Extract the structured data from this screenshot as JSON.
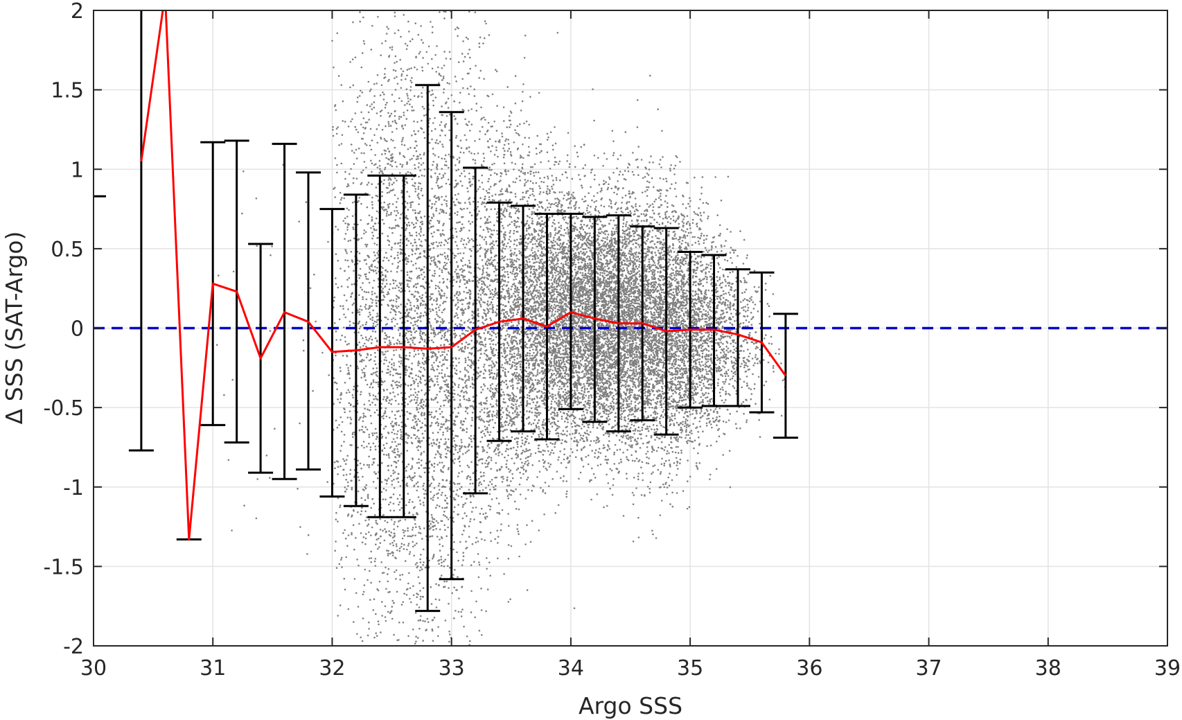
{
  "chart_data": {
    "type": "scatter",
    "title": "",
    "xlabel": "Argo SSS",
    "ylabel": "Δ SSS (SAT-Argo)",
    "xlim": [
      30,
      39
    ],
    "ylim": [
      -2,
      2
    ],
    "xticks": [
      "30",
      "31",
      "32",
      "33",
      "34",
      "35",
      "36",
      "37",
      "38",
      "39"
    ],
    "yticks": [
      "-2",
      "-1.5",
      "-1",
      "-0.5",
      "0",
      "0.5",
      "1",
      "1.5",
      "2"
    ],
    "grid": true,
    "legend": "none",
    "colors": {
      "scatter": "#808080",
      "mean_line": "#ff0000",
      "zero_line": "#0000cc",
      "error_bars": "#000000",
      "grid": "#e3e3e3",
      "axes": "#262626"
    },
    "zero_reference_line": {
      "y": 0,
      "style": "dashed"
    },
    "bins": {
      "x": [
        30.0,
        30.4,
        30.6,
        30.8,
        31.0,
        31.2,
        31.4,
        31.6,
        31.8,
        32.0,
        32.2,
        32.4,
        32.6,
        32.8,
        33.0,
        33.2,
        33.4,
        33.6,
        33.8,
        34.0,
        34.2,
        34.4,
        34.6,
        34.8,
        35.0,
        35.2,
        35.4,
        35.6,
        35.8
      ],
      "mean": [
        null,
        1.05,
        2.1,
        -1.33,
        0.28,
        0.23,
        -0.19,
        0.1,
        0.04,
        -0.15,
        -0.14,
        -0.12,
        -0.12,
        -0.13,
        -0.12,
        -0.01,
        0.04,
        0.06,
        0.01,
        0.1,
        0.06,
        0.03,
        0.03,
        -0.02,
        -0.01,
        -0.01,
        -0.04,
        -0.09,
        -0.3
      ],
      "upper": [
        0.83,
        3.0,
        null,
        null,
        1.17,
        1.18,
        0.53,
        1.16,
        0.98,
        0.75,
        0.84,
        0.96,
        0.96,
        1.53,
        1.36,
        1.01,
        0.79,
        0.77,
        0.72,
        0.72,
        0.7,
        0.71,
        0.64,
        0.63,
        0.48,
        0.46,
        0.37,
        0.35,
        0.09
      ],
      "lower": [
        null,
        -0.77,
        null,
        -1.33,
        -0.61,
        -0.72,
        -0.91,
        -0.95,
        -0.89,
        -1.06,
        -1.12,
        -1.19,
        -1.19,
        -1.78,
        -1.58,
        -1.04,
        -0.71,
        -0.65,
        -0.7,
        -0.51,
        -0.59,
        -0.65,
        -0.58,
        -0.67,
        -0.5,
        -0.49,
        -0.49,
        -0.53,
        -0.69
      ]
    },
    "scatter_density": {
      "description_units": "points per 0.1 SSS column",
      "x_centers": [
        31.1,
        31.3,
        31.5,
        31.7,
        31.9,
        32.05,
        32.15,
        32.25,
        32.35,
        32.45,
        32.55,
        32.65,
        32.75,
        32.85,
        32.95,
        33.05,
        33.15,
        33.25,
        33.35,
        33.45,
        33.55,
        33.65,
        33.75,
        33.85,
        33.95,
        34.05,
        34.15,
        34.25,
        34.35,
        34.45,
        34.55,
        34.65,
        34.75,
        34.85,
        34.95,
        35.05,
        35.15,
        35.25,
        35.35,
        35.45,
        35.55,
        35.65,
        35.75
      ],
      "counts": [
        8,
        8,
        8,
        8,
        10,
        120,
        200,
        260,
        320,
        380,
        420,
        440,
        460,
        440,
        420,
        380,
        360,
        380,
        420,
        460,
        520,
        560,
        620,
        680,
        720,
        760,
        780,
        800,
        800,
        780,
        760,
        720,
        680,
        640,
        560,
        460,
        360,
        260,
        180,
        110,
        60,
        25,
        8
      ],
      "sd": [
        0.8,
        0.8,
        0.8,
        0.8,
        0.8,
        0.9,
        0.95,
        1.0,
        1.0,
        1.05,
        1.05,
        1.05,
        1.05,
        1.0,
        1.0,
        0.95,
        0.9,
        0.7,
        0.65,
        0.6,
        0.55,
        0.5,
        0.45,
        0.42,
        0.4,
        0.38,
        0.38,
        0.38,
        0.38,
        0.4,
        0.4,
        0.42,
        0.42,
        0.4,
        0.38,
        0.35,
        0.33,
        0.3,
        0.28,
        0.26,
        0.25,
        0.24,
        0.25
      ],
      "mu": [
        0,
        0,
        0,
        0,
        0,
        -0.1,
        -0.12,
        -0.12,
        -0.12,
        -0.12,
        -0.12,
        -0.12,
        -0.12,
        -0.12,
        -0.12,
        -0.1,
        -0.05,
        0.0,
        0.02,
        0.04,
        0.05,
        0.05,
        0.05,
        0.06,
        0.06,
        0.06,
        0.05,
        0.04,
        0.03,
        0.02,
        0.01,
        0.0,
        -0.01,
        -0.02,
        -0.02,
        -0.03,
        -0.03,
        -0.04,
        -0.05,
        -0.06,
        -0.08,
        -0.1,
        -0.15
      ]
    }
  }
}
